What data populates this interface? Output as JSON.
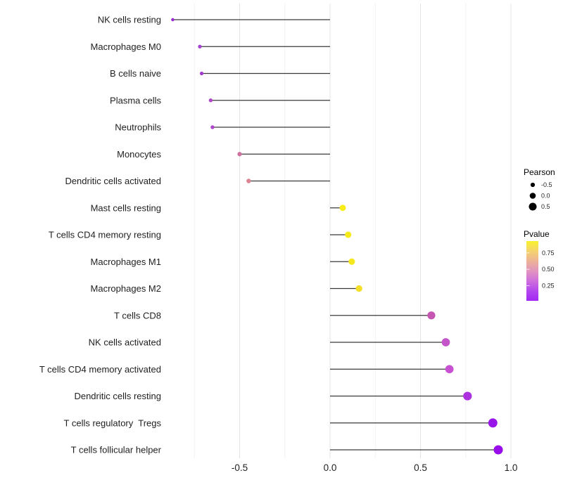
{
  "chart_data": {
    "type": "scatter",
    "variant": "lollipop",
    "orientation": "horizontal",
    "title": "",
    "xlabel": "",
    "ylabel": "",
    "xlim": [
      -0.9,
      1.05
    ],
    "grid": "vertical-only",
    "baseline": 0,
    "x_major_ticks": [
      {
        "value": -0.5,
        "label": "-0.5"
      },
      {
        "value": 0.0,
        "label": "0.0"
      },
      {
        "value": 0.5,
        "label": "0.5"
      },
      {
        "value": 1.0,
        "label": "1.0"
      }
    ],
    "x_minor_ticks": [
      -0.75,
      -0.25,
      0.25,
      0.75
    ],
    "points": [
      {
        "category": "NK cells resting",
        "pearson": -0.87,
        "pvalue_approx": 0.05,
        "color": "#982BD4"
      },
      {
        "category": "Macrophages M0",
        "pearson": -0.72,
        "pvalue_approx": 0.12,
        "color": "#A53FCD"
      },
      {
        "category": "B cells naive",
        "pearson": -0.71,
        "pvalue_approx": 0.1,
        "color": "#A23CD0"
      },
      {
        "category": "Plasma cells",
        "pearson": -0.66,
        "pvalue_approx": 0.18,
        "color": "#B148CB"
      },
      {
        "category": "Neutrophils",
        "pearson": -0.65,
        "pvalue_approx": 0.17,
        "color": "#AF46CB"
      },
      {
        "category": "Monocytes",
        "pearson": -0.5,
        "pvalue_approx": 0.45,
        "color": "#D0719F"
      },
      {
        "category": "Dendritic cells activated",
        "pearson": -0.45,
        "pvalue_approx": 0.55,
        "color": "#DA8494"
      },
      {
        "category": "Mast cells resting",
        "pearson": 0.07,
        "pvalue_approx": 0.85,
        "color": "#F7EC15"
      },
      {
        "category": "T cells CD4 memory resting",
        "pearson": 0.1,
        "pvalue_approx": 0.84,
        "color": "#F6EA18"
      },
      {
        "category": "Macrophages M1",
        "pearson": 0.12,
        "pvalue_approx": 0.82,
        "color": "#F5E81E"
      },
      {
        "category": "Macrophages M2",
        "pearson": 0.16,
        "pvalue_approx": 0.78,
        "color": "#F3DF25"
      },
      {
        "category": "T cells CD8",
        "pearson": 0.56,
        "pvalue_approx": 0.38,
        "color": "#C557B2"
      },
      {
        "category": "NK cells activated",
        "pearson": 0.64,
        "pvalue_approx": 0.32,
        "color": "#C355C9"
      },
      {
        "category": "T cells CD4 memory activated",
        "pearson": 0.66,
        "pvalue_approx": 0.3,
        "color": "#C850D3"
      },
      {
        "category": "Dendritic cells resting",
        "pearson": 0.76,
        "pvalue_approx": 0.17,
        "color": "#AB32DE"
      },
      {
        "category": "T cells regulatory  Tregs",
        "pearson": 0.9,
        "pvalue_approx": 0.06,
        "color": "#9916E9"
      },
      {
        "category": "T cells follicular helper",
        "pearson": 0.93,
        "pvalue_approx": 0.04,
        "color": "#980DE9"
      }
    ],
    "legend_pearson": {
      "title": "Pearson",
      "dot_color": "#000000",
      "entries": [
        {
          "label": "-0.5",
          "value": -0.5
        },
        {
          "label": "0.0",
          "value": 0.0
        },
        {
          "label": "0.5",
          "value": 0.5
        }
      ]
    },
    "legend_pvalue": {
      "title": "Pvalue",
      "tick_labels": [
        "0.75",
        "0.50",
        "0.25"
      ],
      "tick_values": [
        0.75,
        0.5,
        0.25
      ],
      "bar_value_range": [
        0.93,
        0.02
      ],
      "gradient_stops": [
        "#F9F22C",
        "#F5D36E",
        "#EDB396",
        "#E294C0",
        "#CF6FDC",
        "#B347EE",
        "#A228F4"
      ]
    }
  },
  "style_colors": {
    "background": "#FFFFFF",
    "grid_major": "#E4E4E4",
    "grid_minor": "#F1F1F1",
    "stem": "#3A3A3A",
    "axis_text": "#1F1F1F"
  }
}
